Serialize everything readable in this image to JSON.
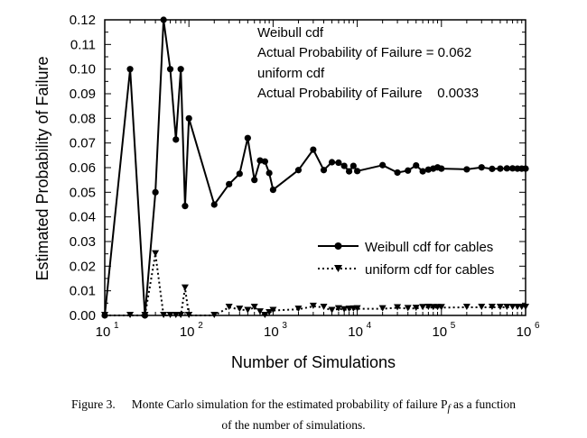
{
  "chart_data": {
    "type": "line",
    "xscale": "log",
    "xlabel": "Number of Simulations",
    "ylabel": "Estimated Probability of Failure",
    "xlim": [
      10,
      1000000
    ],
    "ylim": [
      0,
      0.12
    ],
    "xticks": [
      {
        "value": 10,
        "base": "10",
        "exp": "1"
      },
      {
        "value": 100,
        "base": "10",
        "exp": "2"
      },
      {
        "value": 1000,
        "base": "10",
        "exp": "3"
      },
      {
        "value": 10000,
        "base": "10",
        "exp": "4"
      },
      {
        "value": 100000,
        "base": "10",
        "exp": "5"
      },
      {
        "value": 1000000,
        "base": "10",
        "exp": "6"
      }
    ],
    "yticks": [
      "0.00",
      "0.01",
      "0.02",
      "0.03",
      "0.04",
      "0.05",
      "0.06",
      "0.07",
      "0.08",
      "0.09",
      "0.10",
      "0.11",
      "0.12"
    ],
    "grid": false,
    "legend_position": "lower-right",
    "series": [
      {
        "name": "Weibull cdf for cables",
        "marker": "circle",
        "line": "solid",
        "x": [
          10,
          20,
          30,
          40,
          50,
          60,
          70,
          80,
          90,
          100,
          200,
          300,
          400,
          500,
          600,
          700,
          800,
          900,
          1000,
          2000,
          3000,
          4000,
          5000,
          6000,
          7000,
          8000,
          9000,
          10000,
          20000,
          30000,
          40000,
          50000,
          60000,
          70000,
          80000,
          90000,
          100000,
          200000,
          300000,
          400000,
          500000,
          600000,
          700000,
          800000,
          900000,
          1000000
        ],
        "y": [
          0.0,
          0.1,
          0.0,
          0.05,
          0.12,
          0.1,
          0.0714,
          0.1,
          0.0444,
          0.08,
          0.045,
          0.0533,
          0.0575,
          0.072,
          0.055,
          0.0629,
          0.0625,
          0.0578,
          0.051,
          0.059,
          0.0673,
          0.059,
          0.0622,
          0.062,
          0.0607,
          0.0585,
          0.0607,
          0.0586,
          0.061,
          0.058,
          0.0588,
          0.0609,
          0.0585,
          0.0592,
          0.0596,
          0.0601,
          0.0596,
          0.0593,
          0.0601,
          0.0595,
          0.0596,
          0.0597,
          0.0597,
          0.0596,
          0.0596,
          0.0596
        ]
      },
      {
        "name": "uniform cdf for cables",
        "marker": "triangle-down",
        "line": "dotted",
        "x": [
          10,
          20,
          30,
          40,
          50,
          60,
          70,
          80,
          90,
          100,
          200,
          300,
          400,
          500,
          600,
          700,
          800,
          900,
          1000,
          2000,
          3000,
          4000,
          5000,
          6000,
          7000,
          8000,
          9000,
          10000,
          20000,
          30000,
          40000,
          50000,
          60000,
          70000,
          80000,
          90000,
          100000,
          200000,
          300000,
          400000,
          500000,
          600000,
          700000,
          800000,
          900000,
          1000000
        ],
        "y": [
          0.0,
          0.0,
          0.0,
          0.025,
          0.0,
          0.0,
          0.0,
          0.0,
          0.0111,
          0.0,
          0.0,
          0.0033,
          0.0025,
          0.002,
          0.0033,
          0.0014,
          0.0,
          0.0011,
          0.002,
          0.0025,
          0.0037,
          0.0033,
          0.002,
          0.0027,
          0.0023,
          0.0025,
          0.0026,
          0.0027,
          0.0027,
          0.0031,
          0.0028,
          0.0029,
          0.0032,
          0.0033,
          0.0032,
          0.0032,
          0.0032,
          0.0033,
          0.0033,
          0.0033,
          0.0033,
          0.0033,
          0.0033,
          0.0033,
          0.0033,
          0.0033
        ]
      }
    ],
    "annotations": [
      "Weibull cdf",
      "Actual Probability of Failure = 0.062",
      "uniform cdf",
      "Actual Probability of Failure    0.0033"
    ]
  },
  "caption": {
    "label": "Figure 3.",
    "line1": "Monte Carlo simulation for the estimated probability of failure P",
    "sub": "f",
    "line1_end": " as a function",
    "line2": "of the number of simulations."
  }
}
